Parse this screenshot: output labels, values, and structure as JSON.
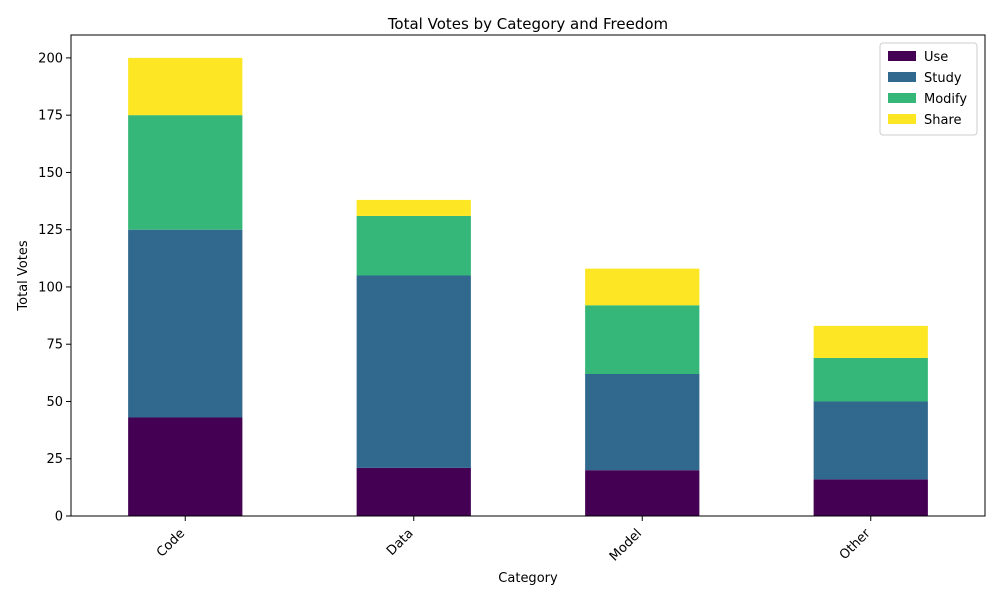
{
  "chart_data": {
    "type": "bar",
    "stacked": true,
    "title": "Total Votes by Category and Freedom",
    "xlabel": "Category",
    "ylabel": "Total Votes",
    "categories": [
      "Code",
      "Data",
      "Model",
      "Other"
    ],
    "series": [
      {
        "name": "Use",
        "color": "#440154",
        "values": [
          43,
          21,
          20,
          16
        ]
      },
      {
        "name": "Study",
        "color": "#31688e",
        "values": [
          82,
          84,
          42,
          34
        ]
      },
      {
        "name": "Modify",
        "color": "#35b779",
        "values": [
          50,
          26,
          30,
          19
        ]
      },
      {
        "name": "Share",
        "color": "#fde725",
        "values": [
          25,
          7,
          16,
          14
        ]
      }
    ],
    "ylim": [
      0,
      210
    ],
    "yticks": [
      0,
      25,
      50,
      75,
      100,
      125,
      150,
      175,
      200
    ],
    "grid": false,
    "legend_position": "top-right"
  }
}
